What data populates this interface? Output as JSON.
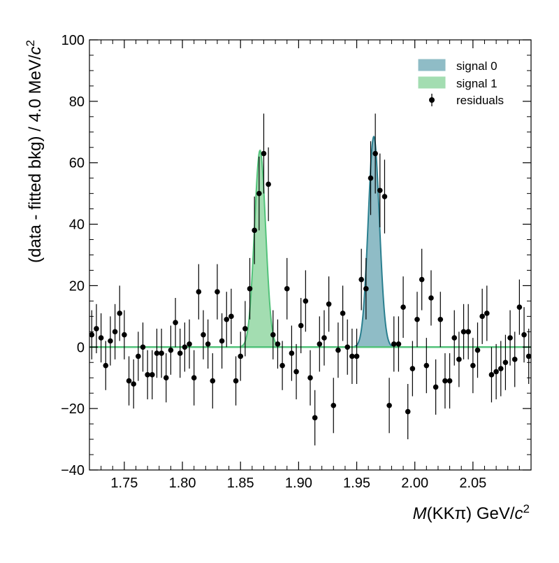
{
  "chart_data": {
    "type": "scatter",
    "xlabel_prefix": "M",
    "xlabel_rest": "(KKπ) GeV/",
    "xlabel_unit": "c",
    "xlabel_unit_sup": "2",
    "ylabel_main": "(data - fitted bkg) / 4.0 MeV/",
    "ylabel_unit": "c",
    "ylabel_unit_sup": "2",
    "xlim": [
      1.72,
      2.1
    ],
    "ylim": [
      -40,
      100
    ],
    "x_ticks": [
      "1.75",
      "1.80",
      "1.85",
      "1.90",
      "1.95",
      "2.00",
      "2.05"
    ],
    "x_tick_values": [
      1.75,
      1.8,
      1.85,
      1.9,
      1.95,
      2.0,
      2.05
    ],
    "y_ticks": [
      "−40",
      "−20",
      "0",
      "20",
      "40",
      "60",
      "80",
      "100"
    ],
    "y_tick_values": [
      -40,
      -20,
      0,
      20,
      40,
      60,
      80,
      100
    ],
    "legend_position": "top-right",
    "colors": {
      "signal0_fill": "#8fbcc6",
      "signal0_line": "#2a7f8f",
      "signal1_fill": "#a3ddb1",
      "signal1_line": "#52c27a",
      "points": "#000000"
    },
    "series": [
      {
        "name": "signal 0",
        "kind": "gaussian",
        "mean": 1.9647,
        "sigma": 0.0048,
        "amplitude": 68.5
      },
      {
        "name": "signal 1",
        "kind": "gaussian",
        "mean": 1.8668,
        "sigma": 0.0048,
        "amplitude": 64
      },
      {
        "name": "residuals",
        "kind": "points",
        "x": [
          1.722,
          1.726,
          1.73,
          1.734,
          1.738,
          1.742,
          1.746,
          1.75,
          1.754,
          1.758,
          1.762,
          1.766,
          1.77,
          1.774,
          1.778,
          1.782,
          1.786,
          1.79,
          1.794,
          1.798,
          1.802,
          1.806,
          1.81,
          1.814,
          1.818,
          1.822,
          1.826,
          1.83,
          1.834,
          1.838,
          1.842,
          1.846,
          1.85,
          1.854,
          1.858,
          1.862,
          1.866,
          1.87,
          1.874,
          1.878,
          1.882,
          1.886,
          1.89,
          1.894,
          1.898,
          1.902,
          1.906,
          1.91,
          1.914,
          1.918,
          1.922,
          1.926,
          1.93,
          1.934,
          1.938,
          1.942,
          1.946,
          1.95,
          1.954,
          1.958,
          1.962,
          1.966,
          1.97,
          1.974,
          1.978,
          1.982,
          1.986,
          1.99,
          1.994,
          1.998,
          2.002,
          2.006,
          2.01,
          2.014,
          2.018,
          2.022,
          2.026,
          2.03,
          2.034,
          2.038,
          2.042,
          2.046,
          2.05,
          2.054,
          2.058,
          2.062,
          2.066,
          2.07,
          2.074,
          2.078,
          2.082,
          2.086,
          2.09,
          2.094,
          2.098
        ],
        "y": [
          4,
          6,
          3,
          -6,
          2,
          5,
          11,
          4,
          -11,
          -12,
          -3,
          0,
          -9,
          -9,
          -2,
          -2,
          -10,
          -1,
          8,
          -2,
          0,
          1,
          -10,
          18,
          4,
          1,
          -11,
          18,
          2,
          9,
          10,
          -11,
          -3,
          6,
          19,
          38,
          50,
          63,
          53,
          4,
          1,
          -6,
          19,
          -2,
          -8,
          7,
          15,
          -10,
          -23,
          1,
          3,
          14,
          -19,
          -1,
          11,
          0,
          -3,
          -3,
          22,
          19,
          55,
          63,
          51,
          49,
          -19,
          1,
          1,
          13,
          -21,
          -7,
          9,
          22,
          -6,
          16,
          -13,
          9,
          -11,
          -11,
          3,
          -4,
          5,
          5,
          -6,
          -1,
          10,
          11,
          -9,
          -8,
          -7,
          -5,
          3,
          -4,
          13,
          4,
          -3
        ],
        "err": [
          8,
          8,
          8,
          8,
          8,
          9,
          9,
          8,
          8,
          8,
          8,
          8,
          8,
          8,
          8,
          8,
          8,
          8,
          8,
          8,
          8,
          8,
          9,
          9,
          8,
          8,
          9,
          9,
          9,
          9,
          9,
          8,
          8,
          9,
          10,
          11,
          12,
          13,
          12,
          8,
          8,
          8,
          10,
          9,
          9,
          9,
          10,
          9,
          9,
          9,
          9,
          9,
          9,
          9,
          9,
          9,
          9,
          9,
          10,
          10,
          12,
          13,
          12,
          12,
          9,
          9,
          9,
          10,
          9,
          9,
          9,
          10,
          9,
          9,
          9,
          9,
          9,
          9,
          9,
          9,
          9,
          9,
          9,
          9,
          9,
          9,
          9,
          9,
          9,
          9,
          9,
          9,
          9,
          9,
          9
        ]
      }
    ]
  }
}
